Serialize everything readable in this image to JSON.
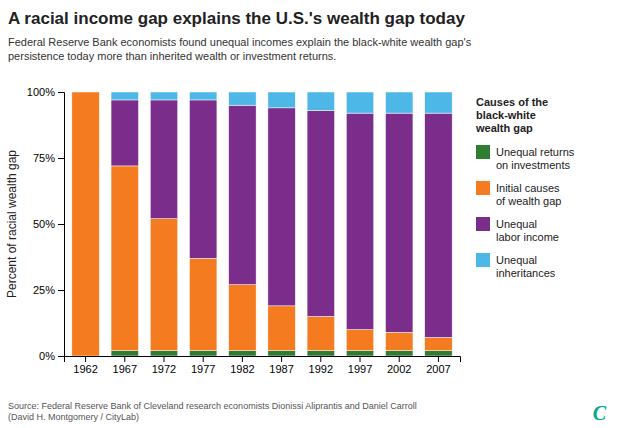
{
  "chart_data": {
    "type": "bar",
    "stacked": true,
    "title": "A racial income gap explains the U.S.'s wealth gap today",
    "subtitle": "Federal Reserve Bank economists found unequal incomes explain the black-white wealth gap's\npersistence today more than inherited wealth or investment returns.",
    "ylabel": "Percent of racial wealth gap",
    "source": "Source: Federal Reserve Bank of Cleveland research economists Dionissi Aliprantis and Daniel Carroll\n(David H. Montgomery / CityLab)",
    "annotations": [
      {
        "text": "C",
        "color": "#00AA88"
      }
    ],
    "legend_title": "Causes of the\nblack-white\nwealth gap",
    "legend": "right",
    "grid": false,
    "categories": [
      "1962",
      "1967",
      "1972",
      "1977",
      "1982",
      "1987",
      "1992",
      "1997",
      "2002",
      "2007"
    ],
    "series": [
      {
        "name": "Unequal returns\non investments",
        "color": "#2E7D32",
        "values": [
          0,
          2,
          2,
          2,
          2,
          2,
          2,
          2,
          2,
          2
        ]
      },
      {
        "name": "Initial causes\nof wealth gap",
        "color": "#F47B20",
        "values": [
          100,
          70,
          50,
          35,
          25,
          17,
          13,
          8,
          7,
          5
        ]
      },
      {
        "name": "Unequal\nlabor income",
        "color": "#7B2D8B",
        "values": [
          0,
          25,
          45,
          60,
          68,
          75,
          78,
          82,
          83,
          85
        ]
      },
      {
        "name": "Unequal\ninheritances",
        "color": "#4DB8E8",
        "values": [
          0,
          3,
          3,
          3,
          5,
          6,
          7,
          8,
          8,
          8
        ]
      }
    ],
    "ylim": [
      0,
      100
    ],
    "yticks": [
      {
        "value": 0,
        "label": "0%"
      },
      {
        "value": 25,
        "label": "25%"
      },
      {
        "value": 50,
        "label": "50%"
      },
      {
        "value": 75,
        "label": "75%"
      },
      {
        "value": 100,
        "label": "100%"
      }
    ]
  }
}
